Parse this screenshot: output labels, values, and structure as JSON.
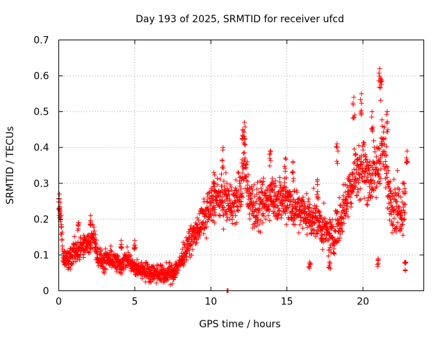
{
  "chart_data": {
    "type": "scatter",
    "title": "Day 193 of 2025, SRMTID for receiver ufcd",
    "xlabel": "GPS time / hours",
    "ylabel": "SRMTID / TECUs",
    "xlim": [
      0,
      24
    ],
    "ylim": [
      0,
      0.7
    ],
    "xticks": [
      0,
      5,
      10,
      15,
      20
    ],
    "yticks": [
      0,
      0.1,
      0.2,
      0.3,
      0.4,
      0.5,
      0.6,
      0.7
    ],
    "xtick_labels": [
      "0",
      "5",
      "10",
      "15",
      "20"
    ],
    "ytick_labels": [
      "0",
      "0.1",
      "0.2",
      "0.3",
      "0.4",
      "0.5",
      "0.6",
      "0.7"
    ],
    "grid": true,
    "marker": "+",
    "color": "#ff0000",
    "trend": [
      {
        "x": 0.0,
        "y": 0.24
      },
      {
        "x": 0.1,
        "y": 0.21
      },
      {
        "x": 0.3,
        "y": 0.1
      },
      {
        "x": 0.6,
        "y": 0.08
      },
      {
        "x": 1.0,
        "y": 0.11
      },
      {
        "x": 1.5,
        "y": 0.12
      },
      {
        "x": 2.0,
        "y": 0.13
      },
      {
        "x": 2.3,
        "y": 0.16
      },
      {
        "x": 2.6,
        "y": 0.09
      },
      {
        "x": 3.0,
        "y": 0.08
      },
      {
        "x": 3.5,
        "y": 0.09
      },
      {
        "x": 4.0,
        "y": 0.07
      },
      {
        "x": 4.5,
        "y": 0.09
      },
      {
        "x": 5.0,
        "y": 0.06
      },
      {
        "x": 5.5,
        "y": 0.06
      },
      {
        "x": 6.0,
        "y": 0.05
      },
      {
        "x": 6.5,
        "y": 0.05
      },
      {
        "x": 7.0,
        "y": 0.045
      },
      {
        "x": 7.5,
        "y": 0.05
      },
      {
        "x": 8.0,
        "y": 0.08
      },
      {
        "x": 8.5,
        "y": 0.13
      },
      {
        "x": 9.0,
        "y": 0.16
      },
      {
        "x": 9.5,
        "y": 0.2
      },
      {
        "x": 10.0,
        "y": 0.24
      },
      {
        "x": 10.5,
        "y": 0.26
      },
      {
        "x": 11.0,
        "y": 0.25
      },
      {
        "x": 11.5,
        "y": 0.24
      },
      {
        "x": 12.0,
        "y": 0.28
      },
      {
        "x": 12.2,
        "y": 0.36
      },
      {
        "x": 12.5,
        "y": 0.26
      },
      {
        "x": 13.0,
        "y": 0.22
      },
      {
        "x": 13.5,
        "y": 0.24
      },
      {
        "x": 14.0,
        "y": 0.27
      },
      {
        "x": 14.5,
        "y": 0.25
      },
      {
        "x": 15.0,
        "y": 0.26
      },
      {
        "x": 15.5,
        "y": 0.23
      },
      {
        "x": 16.0,
        "y": 0.22
      },
      {
        "x": 16.5,
        "y": 0.21
      },
      {
        "x": 17.0,
        "y": 0.2
      },
      {
        "x": 17.5,
        "y": 0.16
      },
      {
        "x": 18.0,
        "y": 0.15
      },
      {
        "x": 18.5,
        "y": 0.2
      },
      {
        "x": 19.0,
        "y": 0.27
      },
      {
        "x": 19.5,
        "y": 0.33
      },
      {
        "x": 20.0,
        "y": 0.35
      },
      {
        "x": 20.5,
        "y": 0.31
      },
      {
        "x": 21.0,
        "y": 0.34
      },
      {
        "x": 21.3,
        "y": 0.42
      },
      {
        "x": 21.6,
        "y": 0.3
      },
      {
        "x": 22.0,
        "y": 0.24
      },
      {
        "x": 22.5,
        "y": 0.23
      },
      {
        "x": 22.8,
        "y": 0.26
      }
    ],
    "spread": [
      {
        "x": 0.0,
        "s": 0.05
      },
      {
        "x": 2.0,
        "s": 0.05
      },
      {
        "x": 5.0,
        "s": 0.035
      },
      {
        "x": 8.0,
        "s": 0.04
      },
      {
        "x": 10.0,
        "s": 0.08
      },
      {
        "x": 12.0,
        "s": 0.1
      },
      {
        "x": 15.0,
        "s": 0.09
      },
      {
        "x": 18.0,
        "s": 0.08
      },
      {
        "x": 20.0,
        "s": 0.12
      },
      {
        "x": 22.8,
        "s": 0.11
      }
    ],
    "peaks": [
      {
        "x": 0.05,
        "y": 0.27
      },
      {
        "x": 1.3,
        "y": 0.19
      },
      {
        "x": 2.1,
        "y": 0.21
      },
      {
        "x": 4.1,
        "y": 0.14
      },
      {
        "x": 5.0,
        "y": 0.14
      },
      {
        "x": 10.2,
        "y": 0.33
      },
      {
        "x": 10.8,
        "y": 0.4
      },
      {
        "x": 12.2,
        "y": 0.47
      },
      {
        "x": 12.1,
        "y": 0.45
      },
      {
        "x": 13.9,
        "y": 0.39
      },
      {
        "x": 14.9,
        "y": 0.37
      },
      {
        "x": 15.4,
        "y": 0.36
      },
      {
        "x": 17.0,
        "y": 0.31
      },
      {
        "x": 18.3,
        "y": 0.41
      },
      {
        "x": 19.4,
        "y": 0.54
      },
      {
        "x": 19.9,
        "y": 0.55
      },
      {
        "x": 20.6,
        "y": 0.5
      },
      {
        "x": 21.1,
        "y": 0.62
      },
      {
        "x": 21.2,
        "y": 0.59
      },
      {
        "x": 21.6,
        "y": 0.5
      },
      {
        "x": 22.9,
        "y": 0.39
      },
      {
        "x": 22.8,
        "y": 0.08
      },
      {
        "x": 11.1,
        "y": 0.0
      },
      {
        "x": 16.5,
        "y": 0.08
      },
      {
        "x": 17.8,
        "y": 0.08
      },
      {
        "x": 21.0,
        "y": 0.09
      }
    ],
    "samples_per_hour": 90
  }
}
